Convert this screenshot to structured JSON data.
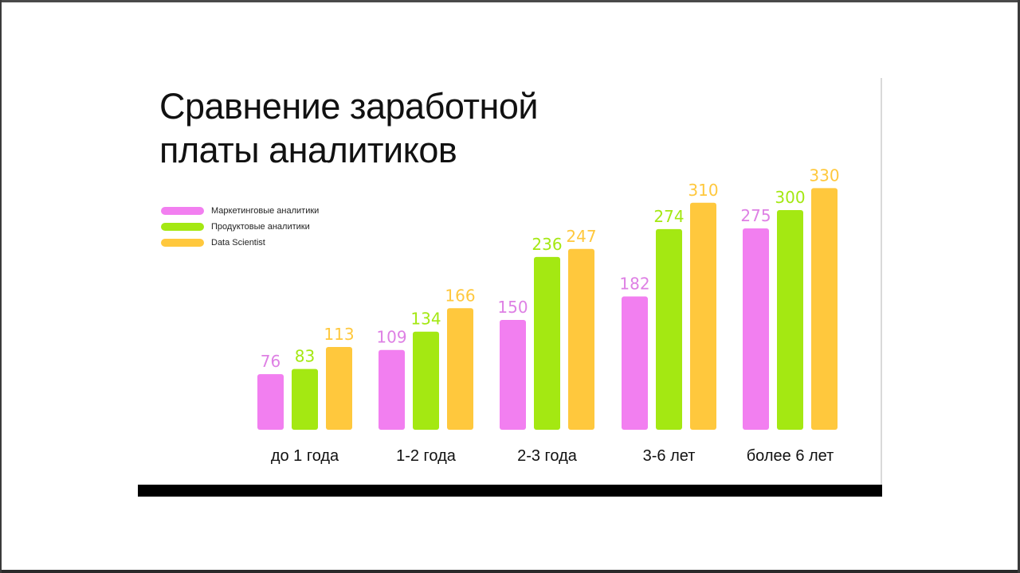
{
  "title_lines": [
    "Сравнение заработной",
    "платы аналитиков"
  ],
  "colors": {
    "marketing": "#f27ff0",
    "product": "#a4e812",
    "datascience": "#ffc83d"
  },
  "chart_data": {
    "type": "bar",
    "title": "Сравнение заработной платы аналитиков",
    "categories": [
      "до 1 года",
      "1-2 года",
      "2-3 года",
      "3-6 лет",
      "более 6 лет"
    ],
    "series": [
      {
        "name": "Маркетинговые аналитики",
        "color": "#f27ff0",
        "values": [
          76,
          109,
          150,
          182,
          275
        ]
      },
      {
        "name": "Продуктовые аналитики",
        "color": "#a4e812",
        "values": [
          83,
          134,
          236,
          274,
          300
        ]
      },
      {
        "name": "Data Scientist",
        "color": "#ffc83d",
        "values": [
          113,
          166,
          247,
          310,
          330
        ]
      }
    ],
    "data_labels": true,
    "legend_position": "top-left",
    "grid": false
  }
}
